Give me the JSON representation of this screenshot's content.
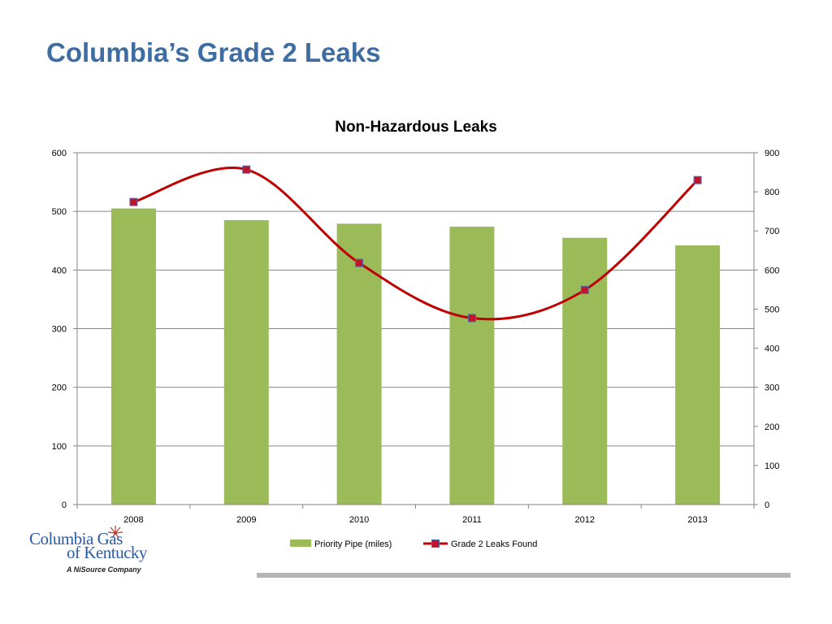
{
  "slide": {
    "title": "Columbia’s Grade 2 Leaks"
  },
  "logo": {
    "line1": "Columbia Gas",
    "line2": "of Kentucky",
    "tagline": "A NiSource Company"
  },
  "colors": {
    "title": "#3d6da3",
    "bar": "#9bbb59",
    "line": "#c00000",
    "marker_fill": "#c0142a",
    "marker_edge": "#4f6bb3",
    "grid": "#868686",
    "footer_bar": "#b5b5b5"
  },
  "chart_data": {
    "type": "bar",
    "title": "Non-Hazardous Leaks",
    "categories": [
      "2008",
      "2009",
      "2010",
      "2011",
      "2012",
      "2013"
    ],
    "series": [
      {
        "name": "Priority Pipe (miles)",
        "type": "bar",
        "axis": "left",
        "values": [
          505,
          485,
          479,
          474,
          455,
          442
        ]
      },
      {
        "name": "Grade 2 Leaks Found",
        "type": "line",
        "smooth": true,
        "axis": "right",
        "values": [
          774,
          857,
          618,
          477,
          549,
          830
        ]
      }
    ],
    "y_left": {
      "min": 0,
      "max": 600,
      "ticks": [
        "0",
        "100",
        "200",
        "300",
        "400",
        "500",
        "600"
      ]
    },
    "y_right": {
      "min": 0,
      "max": 900,
      "ticks": [
        "0",
        "100",
        "200",
        "300",
        "400",
        "500",
        "600",
        "700",
        "800",
        "900"
      ]
    },
    "grid": true,
    "legend_position": "bottom"
  }
}
